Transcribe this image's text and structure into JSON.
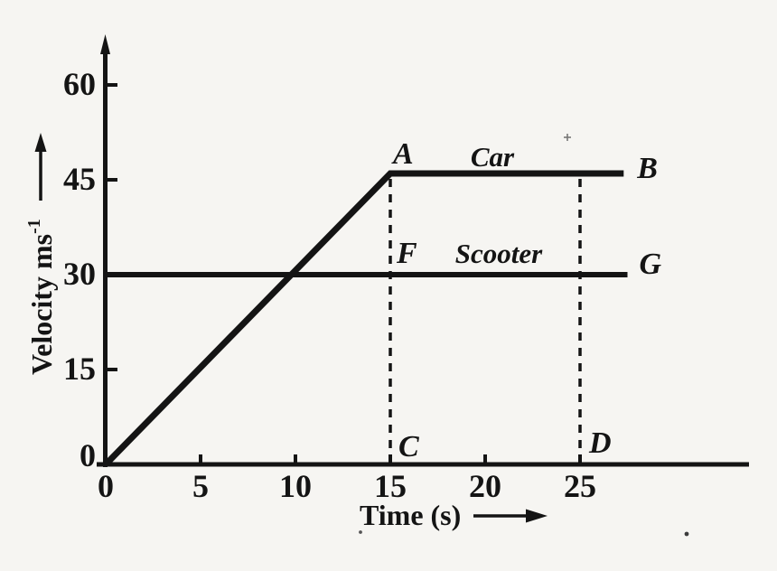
{
  "colors": {
    "background": "#f6f5f2",
    "ink": "#141414"
  },
  "chart_data": {
    "type": "line",
    "title": "",
    "xlabel": "Time (s)",
    "ylabel": "Velocity ms⁻¹",
    "ylabel_main": "Velocity ms",
    "ylabel_sup": "-1",
    "xlim": [
      0,
      34
    ],
    "ylim": [
      0,
      67
    ],
    "grid": false,
    "legend_position": "inline-labels",
    "x_tick_values": [
      0,
      5,
      10,
      15,
      20,
      25
    ],
    "x_tick_labels": [
      "0",
      "5",
      "10",
      "15",
      "20",
      "25"
    ],
    "y_tick_values": [
      0,
      15,
      30,
      45,
      60
    ],
    "y_tick_labels": [
      "0",
      "15",
      "30",
      "45",
      "60"
    ],
    "series": [
      {
        "name": "Car",
        "points": [
          [
            0,
            0
          ],
          [
            15,
            46
          ],
          [
            27.3,
            46
          ]
        ]
      },
      {
        "name": "Scooter",
        "points": [
          [
            0,
            30
          ],
          [
            27.5,
            30
          ]
        ]
      }
    ],
    "guides": [
      {
        "x": 15,
        "y_from": 0,
        "y_to": 46,
        "style": "dashed"
      },
      {
        "x": 25,
        "y_from": 0,
        "y_to": 46,
        "style": "dashed"
      }
    ],
    "point_labels": [
      {
        "text": "A",
        "x": 15,
        "y": 46
      },
      {
        "text": "B",
        "x": 27.3,
        "y": 46
      },
      {
        "text": "C",
        "x": 15,
        "y": 0
      },
      {
        "text": "D",
        "x": 25,
        "y": 0
      },
      {
        "text": "F",
        "x": 15,
        "y": 30
      },
      {
        "text": "G",
        "x": 27.5,
        "y": 30
      }
    ]
  }
}
